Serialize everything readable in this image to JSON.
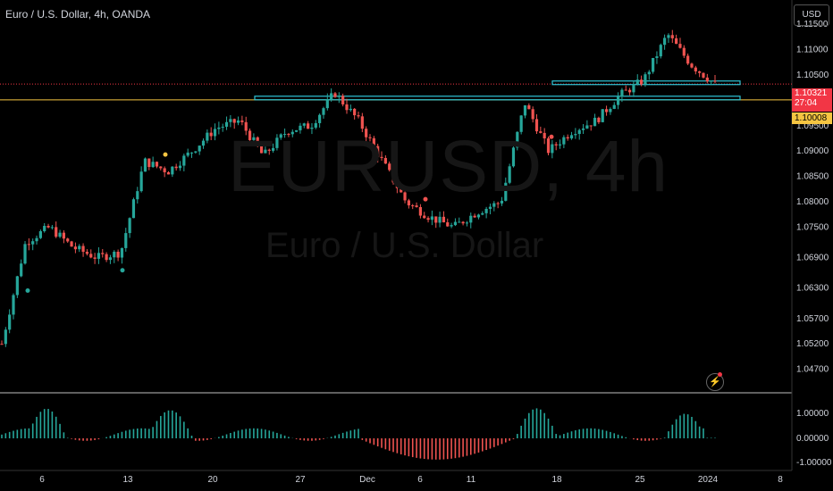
{
  "header": {
    "title": "Euro / U.S. Dollar, 4h, OANDA"
  },
  "watermark": {
    "symbol": "EURUSD, 4h",
    "name": "Euro / U.S. Dollar"
  },
  "price_scale": {
    "currency": "USD",
    "current_price": "1.10321",
    "countdown": "27:04",
    "level_price": "1.10008",
    "labels": [
      "1.11500",
      "1.11000",
      "1.10500",
      "1.09500",
      "1.09000",
      "1.08500",
      "1.08000",
      "1.07500",
      "1.06900",
      "1.06300",
      "1.05700",
      "1.05200",
      "1.04700"
    ]
  },
  "indicator_scale": {
    "labels": [
      "1.00000",
      "0.00000",
      "-1.00000"
    ]
  },
  "time_axis": {
    "labels": [
      "6",
      "13",
      "20",
      "27",
      "Dec",
      "6",
      "11",
      "18",
      "25",
      "2024",
      "8"
    ]
  },
  "colors": {
    "up": "#26a69a",
    "down": "#ef5350",
    "level": "#f5c542",
    "zone": "#2ec4d6",
    "current": "#f23645"
  },
  "chart_data": {
    "type": "candlestick",
    "title": "Euro / U.S. Dollar, 4h, OANDA",
    "yrange": [
      1.045,
      1.118
    ],
    "horizontal_levels": [
      {
        "value": 1.10008,
        "color": "#f5c542"
      }
    ],
    "current_price": 1.10321,
    "resistance_zones": [
      {
        "from_label": "27",
        "to_label": "25",
        "low": 1.1003,
        "high": 1.1008
      },
      {
        "from_label": "18",
        "to_label": "2024",
        "low": 1.1031,
        "high": 1.1038
      }
    ],
    "price_path": [
      [
        "3 Nov",
        1.052
      ],
      [
        "6 Nov",
        1.072
      ],
      [
        "7 Nov",
        1.075
      ],
      [
        "8 Nov",
        1.071
      ],
      [
        "10 Nov",
        1.069
      ],
      [
        "13 Nov",
        1.07
      ],
      [
        "14 Nov",
        1.088
      ],
      [
        "15 Nov",
        1.086
      ],
      [
        "17 Nov",
        1.09
      ],
      [
        "20 Nov",
        1.0945
      ],
      [
        "21 Nov",
        1.096
      ],
      [
        "22 Nov",
        1.089
      ],
      [
        "24 Nov",
        1.094
      ],
      [
        "27 Nov",
        1.095
      ],
      [
        "29 Nov",
        1.1015
      ],
      [
        "30 Nov",
        1.096
      ],
      [
        "Dec 1",
        1.088
      ],
      [
        "Dec 5",
        1.08
      ],
      [
        "Dec 7",
        1.077
      ],
      [
        "Dec 8",
        1.075
      ],
      [
        "Dec 11",
        1.078
      ],
      [
        "Dec 13",
        1.08
      ],
      [
        "Dec 14",
        1.0995
      ],
      [
        "Dec 15",
        1.09
      ],
      [
        "Dec 18",
        1.094
      ],
      [
        "Dec 20",
        1.096
      ],
      [
        "Dec 22",
        1.101
      ],
      [
        "Dec 26",
        1.104
      ],
      [
        "Dec 28",
        1.113
      ],
      [
        "Dec 29",
        1.107
      ],
      [
        "Jan 2",
        1.1032
      ]
    ],
    "oscillator": {
      "range": [
        -1,
        1
      ]
    }
  }
}
